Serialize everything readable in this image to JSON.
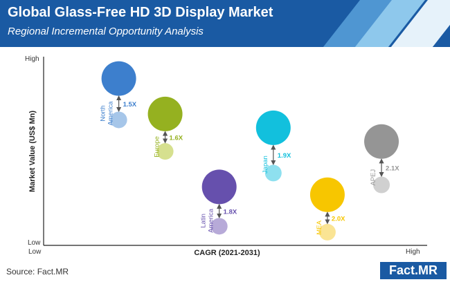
{
  "header": {
    "title": "Global Glass-Free HD 3D Display Market",
    "subtitle": "Regional Incremental Opportunity Analysis"
  },
  "footer": {
    "source": "Source: Fact.MR",
    "brand": "Fact.MR"
  },
  "colors": {
    "header_bg": "#1a5aa3",
    "stripe_light": "#8ec8ec",
    "stripe_mid": "#4f96d2"
  },
  "chart_data": {
    "type": "scatter",
    "title": "Global Glass-Free HD 3D Display Market",
    "subtitle": "Regional Incremental Opportunity Analysis",
    "xlabel": "CAGR (2021-2031)",
    "ylabel": "Market Value (US$ Mn)",
    "x_ticks": [
      "Low",
      "High"
    ],
    "y_ticks": [
      "Low",
      "High"
    ],
    "xlim": [
      0,
      100
    ],
    "ylim": [
      0,
      100
    ],
    "grid": false,
    "series": [
      {
        "name": "North America",
        "label": "North\nAmerica",
        "x": 20,
        "y_current": 84,
        "y_future": 63,
        "growth": "1.5X",
        "color": "#3d7fcd",
        "color_light": "#a6c6e9"
      },
      {
        "name": "Europe",
        "label": "Europe",
        "x": 32,
        "y_current": 66,
        "y_future": 47,
        "growth": "1.6X",
        "color": "#95b120",
        "color_light": "#d6e08f"
      },
      {
        "name": "Latin America",
        "label": "Latin\nAmerica",
        "x": 46,
        "y_current": 29,
        "y_future": 9,
        "growth": "1.8X",
        "color": "#6650ad",
        "color_light": "#b7aad8"
      },
      {
        "name": "Japan",
        "label": "Japan",
        "x": 60,
        "y_current": 59,
        "y_future": 36,
        "growth": "1.9X",
        "color": "#12c0dd",
        "color_light": "#8ee0ef"
      },
      {
        "name": "MEA",
        "label": "MEA",
        "x": 74,
        "y_current": 25,
        "y_future": 6,
        "growth": "2.0X",
        "color": "#f7c600",
        "color_light": "#fae494"
      },
      {
        "name": "APEJ",
        "label": "APEJ",
        "x": 88,
        "y_current": 52,
        "y_future": 30,
        "growth": "2.1X",
        "color": "#959595",
        "color_light": "#d0d0d0"
      }
    ]
  }
}
